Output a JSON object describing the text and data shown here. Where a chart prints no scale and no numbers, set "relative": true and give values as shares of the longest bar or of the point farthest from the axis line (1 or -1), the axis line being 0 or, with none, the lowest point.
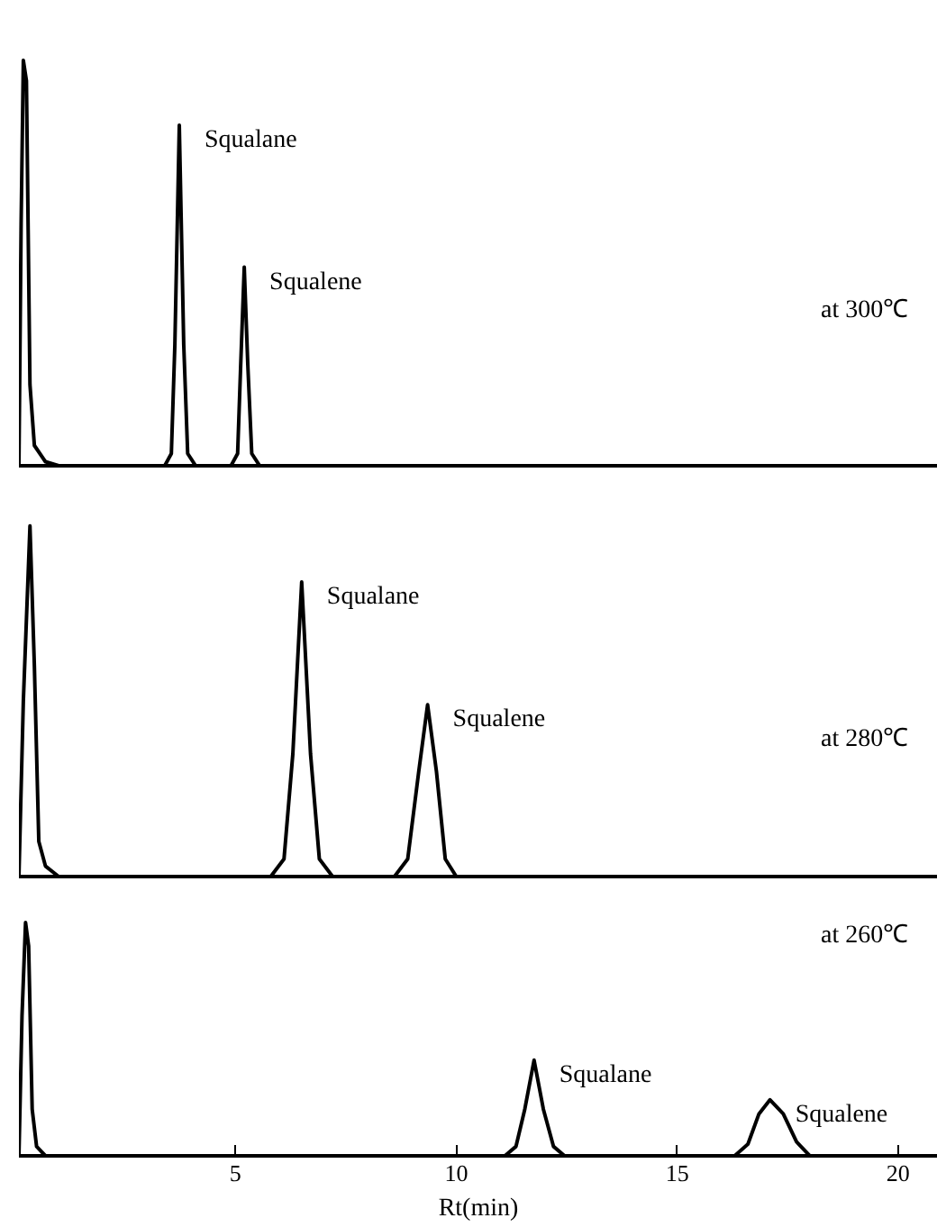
{
  "chart_data": [
    {
      "type": "line",
      "relative": true,
      "xlim": [
        0.1,
        20.9
      ],
      "tick_labels": false,
      "grid": false,
      "marker": "none",
      "line_style": "solid",
      "x": [
        0.1,
        0.15,
        0.2,
        0.27,
        0.35,
        0.45,
        0.7,
        1,
        3.4,
        3.55,
        3.63,
        3.73,
        3.83,
        3.92,
        4.1,
        4.9,
        5.05,
        5.12,
        5.2,
        5.28,
        5.37,
        5.55,
        20.3
      ],
      "series": [
        {
          "color": "#000000",
          "values": [
            0,
            0.6,
            1,
            0.95,
            0.2,
            0.05,
            0.01,
            0,
            0,
            0.03,
            0.3,
            0.84,
            0.3,
            0.03,
            0,
            0,
            0.03,
            0.25,
            0.49,
            0.25,
            0.03,
            0,
            0
          ]
        }
      ],
      "annotations": [
        {
          "text": "Squalane",
          "x": 3.73,
          "y": 0.84
        },
        {
          "text": "Squalene",
          "x": 5.2,
          "y": 0.49
        },
        "at 300℃"
      ]
    },
    {
      "type": "line",
      "relative": true,
      "xlim": [
        0.1,
        20.9
      ],
      "tick_labels": false,
      "grid": false,
      "marker": "none",
      "line_style": "solid",
      "x": [
        0.1,
        0.2,
        0.35,
        0.45,
        0.55,
        0.7,
        1,
        5.8,
        6.1,
        6.3,
        6.5,
        6.7,
        6.9,
        7.2,
        8.6,
        8.9,
        9.15,
        9.35,
        9.55,
        9.75,
        10,
        20.9
      ],
      "series": [
        {
          "color": "#000000",
          "values": [
            0,
            0.5,
            1,
            0.6,
            0.1,
            0.03,
            0,
            0,
            0.05,
            0.35,
            0.84,
            0.35,
            0.05,
            0,
            0,
            0.05,
            0.3,
            0.49,
            0.3,
            0.05,
            0,
            0
          ]
        }
      ],
      "annotations": [
        {
          "text": "Squalane",
          "x": 6.5,
          "y": 0.84
        },
        {
          "text": "Squalene",
          "x": 9.35,
          "y": 0.49
        },
        "at 280℃"
      ]
    },
    {
      "type": "line",
      "relative": true,
      "xlim": [
        0.1,
        20.9
      ],
      "xticks": [
        5,
        10,
        15,
        20
      ],
      "tick_labels": "x",
      "xlabel": "Rt(min)",
      "grid": false,
      "marker": "none",
      "line_style": "solid",
      "x": [
        0.1,
        0.17,
        0.25,
        0.32,
        0.4,
        0.5,
        0.7,
        11.1,
        11.35,
        11.55,
        11.76,
        11.97,
        12.2,
        12.45,
        16.3,
        16.6,
        16.85,
        17.1,
        17.4,
        17.7,
        18,
        20.9
      ],
      "series": [
        {
          "color": "#000000",
          "values": [
            0,
            0.6,
            1,
            0.9,
            0.2,
            0.04,
            0,
            0,
            0.04,
            0.2,
            0.41,
            0.2,
            0.04,
            0,
            0,
            0.05,
            0.18,
            0.24,
            0.18,
            0.06,
            0,
            0
          ]
        }
      ],
      "annotations": [
        {
          "text": "Squalane",
          "x": 11.76,
          "y": 0.41
        },
        {
          "text": "Squalene",
          "x": 17.1,
          "y": 0.24
        },
        "at 260℃"
      ]
    }
  ]
}
